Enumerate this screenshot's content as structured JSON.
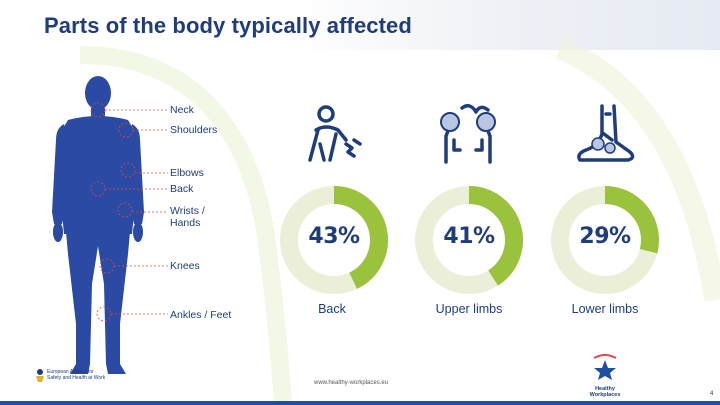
{
  "title": "Parts of the body typically affected",
  "body_parts": [
    "Neck",
    "Shoulders",
    "Elbows",
    "Back",
    "Wrists /\nHands",
    "Knees",
    "Ankles / Feet"
  ],
  "stats": [
    {
      "label": "Back",
      "value_text": "43%",
      "value": 43,
      "icon": "back-pain-icon"
    },
    {
      "label": "Upper limbs",
      "value_text": "41%",
      "value": 41,
      "icon": "upper-limbs-icon"
    },
    {
      "label": "Lower limbs",
      "value_text": "29%",
      "value": 29,
      "icon": "foot-icon"
    }
  ],
  "colors": {
    "primary": "#1f3d7a",
    "figure": "#2b4aa3",
    "accent": "#9bc23c",
    "track": "#ecefd8",
    "highlight": "#e0494a"
  },
  "footer": {
    "url": "www.healthy-workplaces.eu",
    "eu_agency": "European Agency for Safety and Health at Work",
    "healthy_workplaces": "Healthy Workplaces",
    "page": "4"
  }
}
